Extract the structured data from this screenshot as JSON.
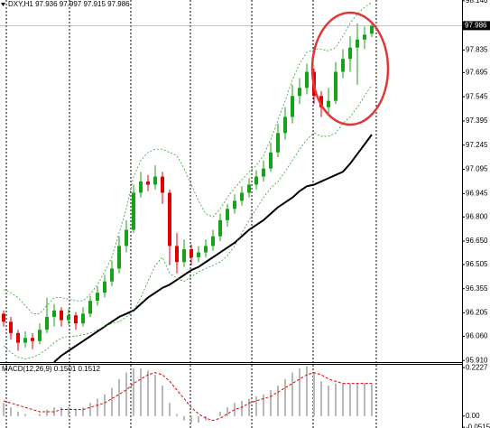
{
  "chart_data": [
    {
      "type": "candlestick",
      "title": "DXY,H1  97.936 97.997 97.915 97.986",
      "up_color": "#17a317",
      "down_color": "#e00000",
      "ohlc": [
        [
          96.2,
          96.22,
          96.12,
          96.15
        ],
        [
          96.15,
          96.18,
          96.04,
          96.08
        ],
        [
          96.08,
          96.1,
          95.97,
          96.02
        ],
        [
          96.02,
          96.09,
          95.99,
          96.05
        ],
        [
          96.05,
          96.08,
          95.98,
          96.03
        ],
        [
          96.03,
          96.14,
          96.01,
          96.1
        ],
        [
          96.1,
          96.3,
          96.08,
          96.18
        ],
        [
          96.18,
          96.26,
          96.12,
          96.22
        ],
        [
          96.22,
          96.24,
          96.12,
          96.16
        ],
        [
          96.16,
          96.23,
          96.13,
          96.19
        ],
        [
          96.19,
          96.21,
          96.1,
          96.14
        ],
        [
          96.14,
          96.24,
          96.12,
          96.2
        ],
        [
          96.2,
          96.31,
          96.18,
          96.28
        ],
        [
          96.28,
          96.37,
          96.25,
          96.33
        ],
        [
          96.33,
          96.44,
          96.3,
          96.4
        ],
        [
          96.4,
          96.53,
          96.37,
          96.48
        ],
        [
          96.48,
          96.68,
          96.45,
          96.62
        ],
        [
          96.62,
          96.78,
          96.58,
          96.72
        ],
        [
          96.72,
          97.0,
          96.7,
          96.95
        ],
        [
          96.95,
          97.08,
          96.92,
          97.02
        ],
        [
          97.02,
          97.06,
          96.96,
          97.0
        ],
        [
          97.0,
          97.12,
          96.97,
          97.05
        ],
        [
          97.05,
          97.08,
          96.88,
          96.95
        ],
        [
          96.95,
          96.97,
          96.5,
          96.62
        ],
        [
          96.62,
          96.7,
          96.45,
          96.52
        ],
        [
          96.52,
          96.66,
          96.49,
          96.6
        ],
        [
          96.6,
          96.63,
          96.5,
          96.55
        ],
        [
          96.55,
          96.62,
          96.52,
          96.58
        ],
        [
          96.58,
          96.66,
          96.55,
          96.62
        ],
        [
          96.62,
          96.72,
          96.59,
          96.68
        ],
        [
          96.68,
          96.82,
          96.65,
          96.78
        ],
        [
          96.78,
          96.88,
          96.74,
          96.85
        ],
        [
          96.85,
          96.94,
          96.82,
          96.9
        ],
        [
          96.9,
          96.99,
          96.87,
          96.95
        ],
        [
          96.95,
          97.04,
          96.92,
          97.0
        ],
        [
          97.0,
          97.09,
          96.97,
          97.05
        ],
        [
          97.05,
          97.15,
          97.02,
          97.1
        ],
        [
          97.1,
          97.26,
          97.08,
          97.2
        ],
        [
          97.2,
          97.38,
          97.17,
          97.32
        ],
        [
          97.32,
          97.48,
          97.28,
          97.42
        ],
        [
          97.42,
          97.62,
          97.38,
          97.55
        ],
        [
          97.55,
          97.66,
          97.5,
          97.6
        ],
        [
          97.6,
          97.75,
          97.56,
          97.7
        ],
        [
          97.7,
          97.72,
          97.5,
          97.55
        ],
        [
          97.55,
          97.58,
          97.42,
          97.48
        ],
        [
          97.48,
          97.6,
          97.44,
          97.52
        ],
        [
          97.52,
          97.76,
          97.5,
          97.7
        ],
        [
          97.7,
          97.84,
          97.66,
          97.78
        ],
        [
          97.78,
          97.92,
          97.7,
          97.85
        ],
        [
          97.85,
          98.0,
          97.62,
          97.9
        ],
        [
          97.9,
          97.98,
          97.84,
          97.93
        ],
        [
          97.936,
          97.997,
          97.915,
          97.986
        ]
      ],
      "overlays": [
        {
          "color": "#000000",
          "style": "solid",
          "values": [
            null,
            null,
            null,
            null,
            null,
            null,
            null,
            95.9,
            95.94,
            95.97,
            96.0,
            96.03,
            96.06,
            96.09,
            96.12,
            96.15,
            96.18,
            96.2,
            96.22,
            96.26,
            96.3,
            96.33,
            96.36,
            96.38,
            96.41,
            96.44,
            96.47,
            96.49,
            96.52,
            96.55,
            96.58,
            96.61,
            96.64,
            96.68,
            96.72,
            96.75,
            96.78,
            96.82,
            96.86,
            96.89,
            96.92,
            96.96,
            96.99,
            97.0,
            97.02,
            97.04,
            97.06,
            97.08,
            97.13,
            97.19,
            97.25,
            97.31
          ]
        },
        {
          "color": "#33a033",
          "style": "dashed",
          "values": [
            96.35,
            96.33,
            96.3,
            96.25,
            96.2,
            96.2,
            96.25,
            96.3,
            96.3,
            96.29,
            96.28,
            96.28,
            96.32,
            96.38,
            96.46,
            96.55,
            96.7,
            96.85,
            97.05,
            97.15,
            97.2,
            97.22,
            97.22,
            97.2,
            97.18,
            97.1,
            97.0,
            96.9,
            96.82,
            96.8,
            96.85,
            96.92,
            96.98,
            97.03,
            97.08,
            97.12,
            97.18,
            97.28,
            97.4,
            97.52,
            97.65,
            97.75,
            97.82,
            97.84,
            97.84,
            97.83,
            97.85,
            97.92,
            98.0,
            98.06,
            98.1,
            98.13
          ]
        },
        {
          "color": "#33a033",
          "style": "dashed",
          "values": [
            96.0,
            95.96,
            95.93,
            95.92,
            95.93,
            95.95,
            95.98,
            96.02,
            96.05,
            96.06,
            96.06,
            96.07,
            96.08,
            96.1,
            96.12,
            96.14,
            96.15,
            96.18,
            96.22,
            96.3,
            96.4,
            96.5,
            96.55,
            96.45,
            96.42,
            96.4,
            96.43,
            96.46,
            96.48,
            96.5,
            96.52,
            96.56,
            96.62,
            96.7,
            96.78,
            96.85,
            96.92,
            96.98,
            97.02,
            97.08,
            97.15,
            97.22,
            97.28,
            97.32,
            97.3,
            97.3,
            97.32,
            97.38,
            97.42,
            97.48,
            97.55,
            97.62
          ]
        }
      ],
      "current_price": 97.986,
      "ylim": [
        95.9,
        98.145
      ],
      "yticks": [
        {
          "value": 98.14,
          "label": "98.140"
        },
        97.835,
        97.695,
        97.545,
        97.395,
        97.245,
        97.095,
        96.945,
        {
          "value": 96.8,
          "label": "96.800"
        },
        {
          "value": 96.65,
          "label": "96.650"
        },
        96.505,
        96.355,
        96.205,
        {
          "value": 96.06,
          "label": "96.060"
        },
        {
          "value": 95.91,
          "label": "95.910"
        }
      ]
    },
    {
      "type": "macd",
      "title": "MACD(12,26,9) 0.1501 0.1512",
      "histogram_color": "#b8b8b8",
      "signal_color": "#e00000",
      "histogram": [
        0.06,
        0.04,
        0.02,
        0.01,
        0,
        0.01,
        0.03,
        0.04,
        0.04,
        0.04,
        0.03,
        0.04,
        0.06,
        0.08,
        0.1,
        0.13,
        0.17,
        0.2,
        0.22,
        0.22,
        0.21,
        0.19,
        0.14,
        0.06,
        0.01,
        -0.02,
        -0.03,
        -0.03,
        -0.02,
        0,
        0.02,
        0.04,
        0.06,
        0.07,
        0.08,
        0.09,
        0.1,
        0.12,
        0.14,
        0.17,
        0.2,
        0.22,
        0.23,
        0.2,
        0.16,
        0.14,
        0.15,
        0.15,
        0.15,
        0.15,
        0.15,
        0.1501
      ],
      "signal": [
        0.07,
        0.06,
        0.05,
        0.04,
        0.03,
        0.02,
        0.02,
        0.02,
        0.03,
        0.03,
        0.03,
        0.03,
        0.04,
        0.05,
        0.06,
        0.08,
        0.1,
        0.12,
        0.15,
        0.17,
        0.19,
        0.2,
        0.19,
        0.16,
        0.12,
        0.08,
        0.04,
        0.01,
        -0.01,
        -0.02,
        -0.01,
        0.01,
        0.03,
        0.04,
        0.06,
        0.07,
        0.08,
        0.09,
        0.11,
        0.13,
        0.15,
        0.17,
        0.19,
        0.2,
        0.19,
        0.17,
        0.16,
        0.15,
        0.15,
        0.15,
        0.15,
        0.1512
      ],
      "ylim": [
        -0.055,
        0.24
      ],
      "yticks": [
        0.2227,
        {
          "value": 0,
          "label": "0.00"
        },
        -0.0515
      ]
    }
  ]
}
